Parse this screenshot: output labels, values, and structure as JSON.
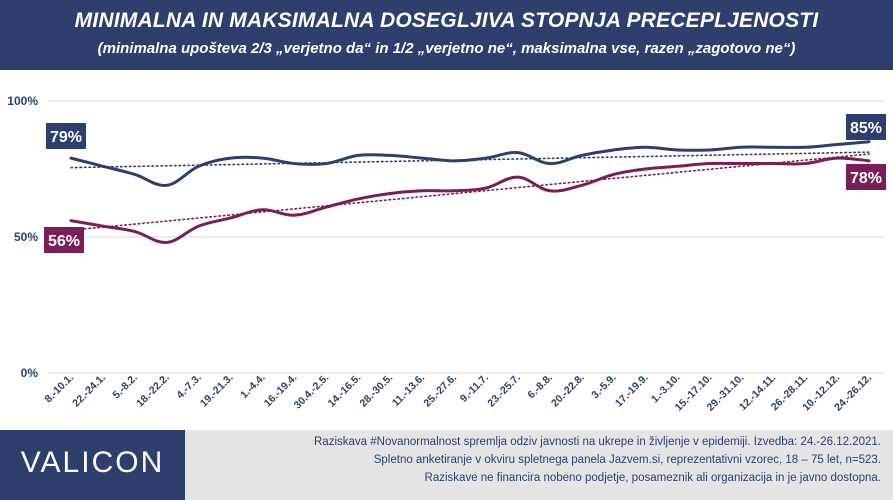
{
  "header": {
    "title": "MINIMALNA IN MAKSIMALNA DOSEGLJIVA STOPNJA PRECEPLJENOSTI",
    "subtitle": "(minimalna upošteva 2/3 „verjetno da“ in 1/2 „verjetno ne“, maksimalna vse, razen „zagotovo ne“)"
  },
  "chart_data": {
    "type": "line",
    "categories": [
      "8.-10.1.",
      "22.-24.1.",
      "5.-8.2.",
      "18.-22.2.",
      "4.-7.3.",
      "19.-21.3.",
      "1.-4.4.",
      "16.-19.4.",
      "30.4.-2.5.",
      "14.-16.5.",
      "28.-30.5.",
      "11.-13.6.",
      "25.-27.6.",
      "9.-11.7.",
      "23.-25.7.",
      "6.-8.8.",
      "20.-22.8.",
      "3.-5.9.",
      "17.-19.9.",
      "1.-3.10.",
      "15.-17.10.",
      "29.-31.10.",
      "12.-14.11.",
      "26.-28.11.",
      "10.-12.12.",
      "24.-26.12."
    ],
    "series": [
      {
        "values": [
          79,
          76,
          73,
          69,
          76,
          79,
          79,
          77,
          77,
          80,
          80,
          79,
          78,
          79,
          81,
          77,
          80,
          82,
          83,
          82,
          82,
          83,
          83,
          83,
          84,
          85
        ],
        "color": "#2e3f6e",
        "trend": [
          75.5,
          81.2
        ]
      },
      {
        "values": [
          56,
          54,
          52,
          48,
          54,
          57,
          60,
          58,
          61,
          64,
          66,
          67,
          67,
          68,
          72,
          67,
          69,
          73,
          75,
          76,
          77,
          77,
          77,
          77,
          79,
          78
        ],
        "color": "#7a1f56",
        "trend": [
          52.5,
          80.5
        ]
      }
    ],
    "start_labels": [
      "79%",
      "56%"
    ],
    "end_labels": [
      "85%",
      "78%"
    ],
    "yticks": [
      "100%",
      "50%",
      "0%"
    ],
    "ylim": [
      0,
      100
    ],
    "grid": true
  },
  "footer": {
    "logo": "VALICON",
    "note_lines": [
      "Raziskava #Novanormalnost spremlja odziv javnosti na ukrepe in življenje v epidemiji. Izvedba: 24.-26.12.2021.",
      "Spletno anketiranje v okviru spletnega panela Jazvem.si, reprezentativni vzorec, 18 – 75 let, n=523.",
      "Raziskave ne financira nobeno podjetje, posameznik ali organizacija in je javno dostopna."
    ]
  }
}
